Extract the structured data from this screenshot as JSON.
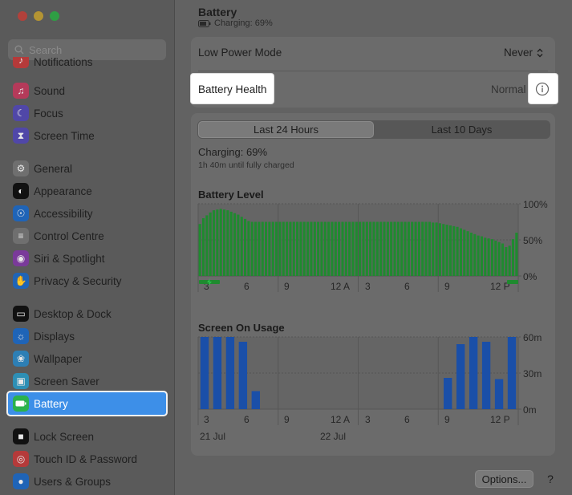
{
  "window": {
    "traffic_colors": [
      "#b2413b",
      "#b49433",
      "#2f9e44"
    ]
  },
  "sidebar": {
    "search_placeholder": "Search",
    "items": [
      {
        "label": "Notifications",
        "icon": "bell-icon",
        "color": "#b53a3a"
      },
      {
        "label": "Sound",
        "icon": "speaker-icon",
        "color": "#b53a5a"
      },
      {
        "label": "Focus",
        "icon": "moon-icon",
        "color": "#5047a8"
      },
      {
        "label": "Screen Time",
        "icon": "hourglass-icon",
        "color": "#5047a8"
      },
      {
        "label": "General",
        "icon": "gear-icon",
        "color": "#6f6f6f"
      },
      {
        "label": "Appearance",
        "icon": "appearance-icon",
        "color": "#111111"
      },
      {
        "label": "Accessibility",
        "icon": "accessibility-icon",
        "color": "#1f64b7"
      },
      {
        "label": "Control Centre",
        "icon": "control-centre-icon",
        "color": "#6f6f6f"
      },
      {
        "label": "Siri & Spotlight",
        "icon": "siri-icon",
        "color": "#7a3a9a"
      },
      {
        "label": "Privacy & Security",
        "icon": "hand-icon",
        "color": "#1f64b7"
      },
      {
        "label": "Desktop & Dock",
        "icon": "dock-icon",
        "color": "#111111"
      },
      {
        "label": "Displays",
        "icon": "sun-icon",
        "color": "#1f64b7"
      },
      {
        "label": "Wallpaper",
        "icon": "flower-icon",
        "color": "#2d7fb5"
      },
      {
        "label": "Screen Saver",
        "icon": "screensaver-icon",
        "color": "#2d8fb5"
      },
      {
        "label": "Battery",
        "icon": "battery-icon",
        "color": "#2bb24c"
      },
      {
        "label": "Lock Screen",
        "icon": "lock-icon",
        "color": "#111111"
      },
      {
        "label": "Touch ID & Password",
        "icon": "fingerprint-icon",
        "color": "#b53a3a"
      },
      {
        "label": "Users & Groups",
        "icon": "users-icon",
        "color": "#1f64b7"
      }
    ]
  },
  "header": {
    "title": "Battery",
    "subtitle": "Charging: 69%"
  },
  "low_power": {
    "label": "Low Power Mode",
    "value": "Never"
  },
  "battery_health": {
    "label": "Battery Health",
    "value": "Normal"
  },
  "tabs": {
    "active": "Last 24 Hours",
    "other": "Last 10 Days"
  },
  "status": {
    "charging": "Charging: 69%",
    "time_left": "1h 40m until fully charged"
  },
  "chart_data": [
    {
      "type": "bar",
      "title": "Battery Level",
      "y_ticks": [
        "100%",
        "50%",
        "0%"
      ],
      "x_ticks": [
        "3",
        "6",
        "9",
        "12 A",
        "3",
        "6",
        "9",
        "12 P"
      ],
      "ylim": [
        0,
        100
      ],
      "color": "#1f8a2f",
      "values": [
        72,
        80,
        84,
        88,
        91,
        92,
        93,
        92,
        91,
        89,
        87,
        85,
        82,
        79,
        76,
        75,
        75,
        75,
        75,
        75,
        75,
        75,
        75,
        75,
        75,
        75,
        75,
        75,
        75,
        75,
        75,
        75,
        75,
        75,
        75,
        75,
        75,
        75,
        75,
        75,
        75,
        75,
        75,
        75,
        75,
        75,
        75,
        75,
        75,
        75,
        75,
        75,
        75,
        75,
        75,
        75,
        75,
        75,
        75,
        75,
        75,
        75,
        75,
        75,
        75,
        75,
        75,
        74,
        74,
        73,
        72,
        71,
        70,
        69,
        68,
        66,
        64,
        62,
        60,
        58,
        56,
        55,
        53,
        52,
        51,
        49,
        47,
        45,
        40,
        42,
        51,
        60
      ]
    },
    {
      "type": "bar",
      "title": "Screen On Usage",
      "y_ticks": [
        "60m",
        "30m",
        "0m"
      ],
      "x_ticks": [
        "3",
        "6",
        "9",
        "12 A",
        "3",
        "6",
        "9",
        "12 P"
      ],
      "date_labels": [
        "21 Jul",
        "22 Jul"
      ],
      "ylim": [
        0,
        60
      ],
      "color": "#1a4fa8",
      "values": [
        60,
        60,
        60,
        56,
        15,
        0,
        0,
        0,
        0,
        0,
        0,
        0,
        0,
        0,
        0,
        0,
        0,
        0,
        0,
        26,
        54,
        60,
        56,
        25,
        60
      ]
    }
  ],
  "footer": {
    "options_label": "Options...",
    "help_label": "?"
  }
}
